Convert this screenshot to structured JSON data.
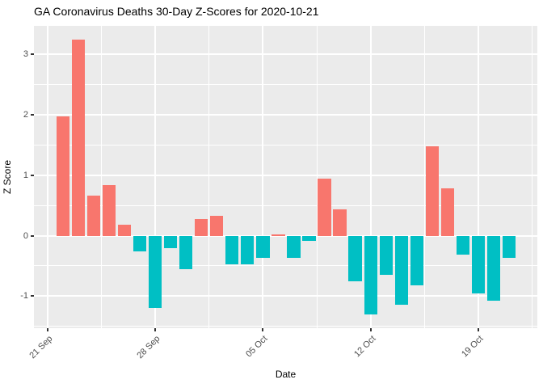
{
  "title": "GA Coronavirus Deaths 30-Day Z-Scores for 2020-10-21",
  "chart_data": {
    "type": "bar",
    "title": "GA Coronavirus Deaths 30-Day Z-Scores for 2020-10-21",
    "xlabel": "Date",
    "ylabel": "Z Score",
    "x0_date": "2020-09-21",
    "x": [
      "2020-09-22",
      "2020-09-23",
      "2020-09-24",
      "2020-09-25",
      "2020-09-26",
      "2020-09-27",
      "2020-09-28",
      "2020-09-29",
      "2020-09-30",
      "2020-10-01",
      "2020-10-02",
      "2020-10-03",
      "2020-10-04",
      "2020-10-05",
      "2020-10-06",
      "2020-10-07",
      "2020-10-08",
      "2020-10-09",
      "2020-10-10",
      "2020-10-11",
      "2020-10-12",
      "2020-10-13",
      "2020-10-14",
      "2020-10-15",
      "2020-10-16",
      "2020-10-17",
      "2020-10-18",
      "2020-10-19",
      "2020-10-20",
      "2020-10-21"
    ],
    "values": [
      1.97,
      3.24,
      0.66,
      0.83,
      0.18,
      -0.26,
      -1.2,
      -0.21,
      -0.55,
      0.28,
      0.33,
      -0.48,
      -0.48,
      -0.37,
      0.02,
      -0.37,
      -0.09,
      0.94,
      0.43,
      -0.76,
      -1.3,
      -0.65,
      -1.14,
      -0.82,
      1.48,
      0.78,
      -0.31,
      -0.96,
      -1.07,
      -0.37
    ],
    "xticks": [
      {
        "label": "21 Sep",
        "date": "2020-09-21"
      },
      {
        "label": "28 Sep",
        "date": "2020-09-28"
      },
      {
        "label": "05 Oct",
        "date": "2020-10-05"
      },
      {
        "label": "12 Oct",
        "date": "2020-10-12"
      },
      {
        "label": "19 Oct",
        "date": "2020-10-19"
      }
    ],
    "yticks": [
      3,
      2,
      1,
      0,
      -1
    ],
    "yticks_minor": [
      2.5,
      1.5,
      0.5,
      -0.5,
      -1.5
    ],
    "ylim": [
      -1.53,
      3.47
    ],
    "xlim_days": [
      -0.9,
      31.85
    ],
    "bar_width_frac": 0.85,
    "positive_color": "#F8766D",
    "negative_color": "#00BFC4",
    "panel_background": "#EBEBEB",
    "grid_color": "#FFFFFF",
    "tick_text_color": "#4D4D4D",
    "legend": "none",
    "grid": "on"
  }
}
